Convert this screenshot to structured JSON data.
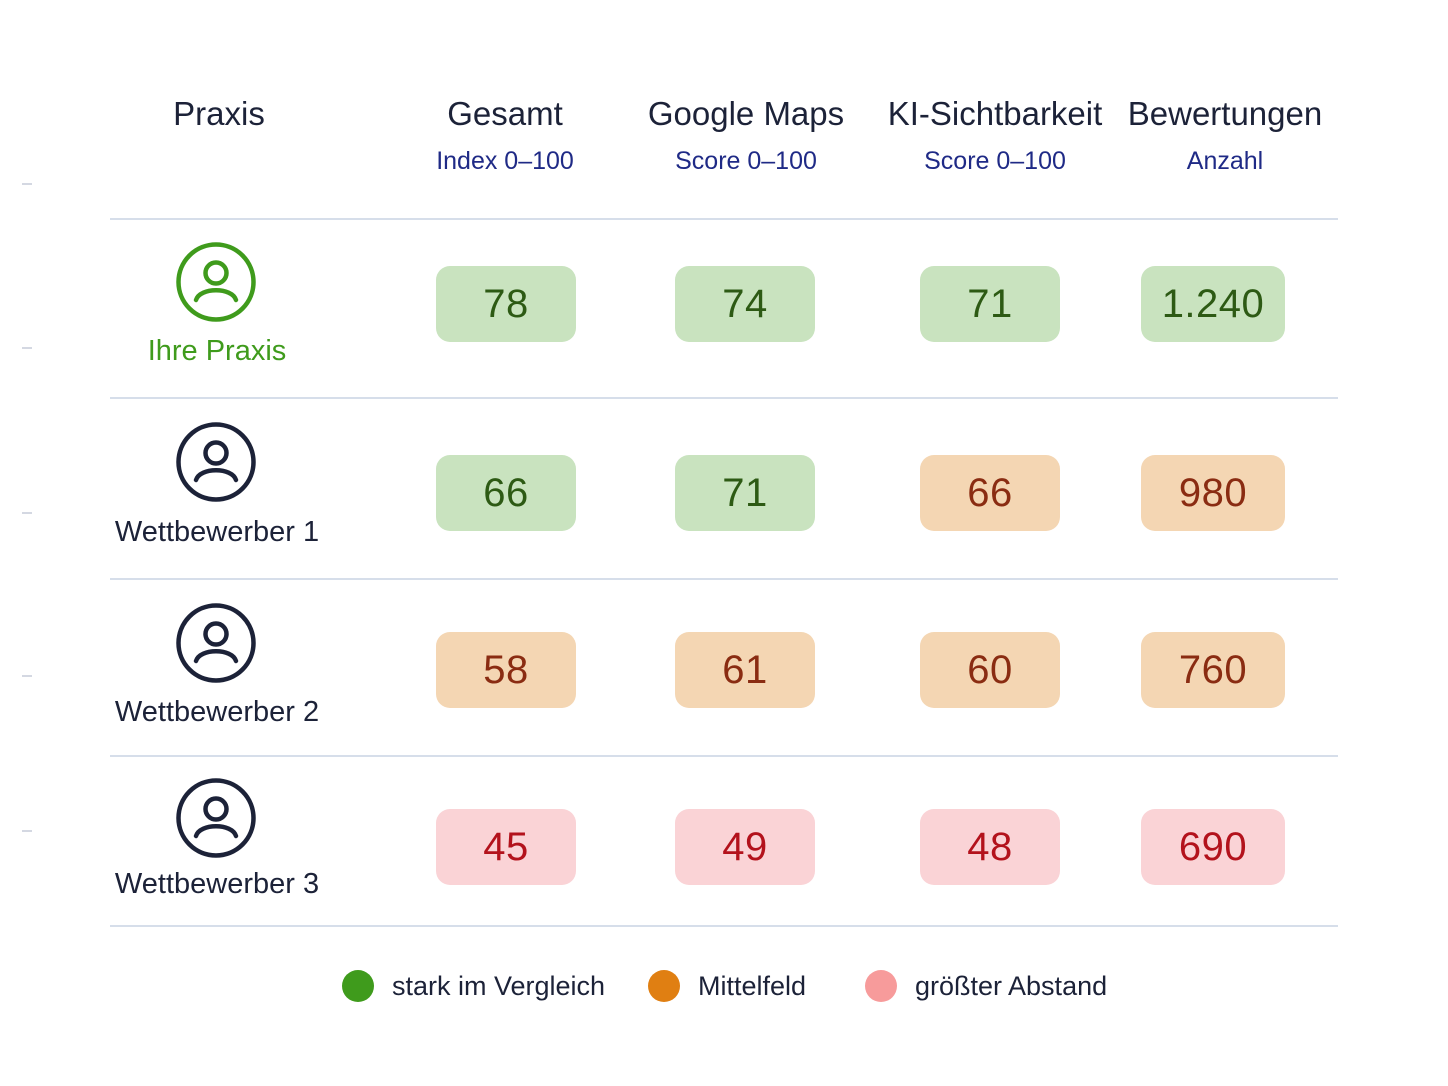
{
  "colors": {
    "good_bg": "#c9e3bf",
    "good_text": "#2d5a14",
    "mid_bg": "#f4d6b3",
    "mid_text": "#8a2c12",
    "low_bg": "#fad3d6",
    "low_text": "#b3121c",
    "own_accent": "#3f9b1c",
    "neutral_icon": "#1c2238",
    "legend_good": "#3f9b1c",
    "legend_mid": "#e07f12",
    "legend_low": "#f79b9b"
  },
  "chart_data": {
    "type": "table",
    "header": {
      "praxis": "Praxis",
      "columns": [
        {
          "title": "Gesamt",
          "subtitle": "Index 0–100"
        },
        {
          "title": "Google Maps",
          "subtitle": "Score 0–100"
        },
        {
          "title": "KI-Sichtbarkeit",
          "subtitle": "Score 0–100"
        },
        {
          "title": "Bewertungen",
          "subtitle": "Anzahl"
        }
      ]
    },
    "rows": [
      {
        "name": "Ihre Praxis",
        "icon": "user-icon",
        "highlight": true,
        "cells": [
          {
            "value": "78",
            "level": "good"
          },
          {
            "value": "74",
            "level": "good"
          },
          {
            "value": "71",
            "level": "good"
          },
          {
            "value": "1.240",
            "level": "good"
          }
        ]
      },
      {
        "name": "Wettbewerber 1",
        "icon": "user-icon",
        "highlight": false,
        "cells": [
          {
            "value": "66",
            "level": "good"
          },
          {
            "value": "71",
            "level": "good"
          },
          {
            "value": "66",
            "level": "mid"
          },
          {
            "value": "980",
            "level": "mid"
          }
        ]
      },
      {
        "name": "Wettbewerber 2",
        "icon": "user-icon",
        "highlight": false,
        "cells": [
          {
            "value": "58",
            "level": "mid"
          },
          {
            "value": "61",
            "level": "mid"
          },
          {
            "value": "60",
            "level": "mid"
          },
          {
            "value": "760",
            "level": "mid"
          }
        ]
      },
      {
        "name": "Wettbewerber 3",
        "icon": "user-icon",
        "highlight": false,
        "cells": [
          {
            "value": "45",
            "level": "low"
          },
          {
            "value": "49",
            "level": "low"
          },
          {
            "value": "48",
            "level": "low"
          },
          {
            "value": "690",
            "level": "low"
          }
        ]
      }
    ],
    "legend": [
      {
        "label": "stark im Vergleich",
        "level": "good"
      },
      {
        "label": "Mittelfeld",
        "level": "mid"
      },
      {
        "label": "größter Abstand",
        "level": "low"
      }
    ]
  }
}
